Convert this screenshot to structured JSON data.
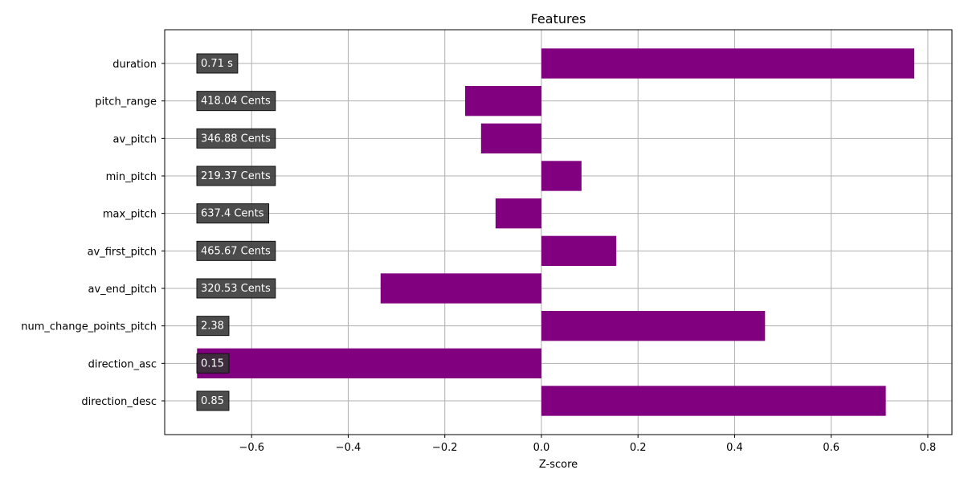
{
  "chart_data": {
    "type": "bar",
    "orientation": "horizontal",
    "title": "Features",
    "xlabel": "Z-score",
    "ylabel": "",
    "xlim": [
      -0.78,
      0.85
    ],
    "xticks": [
      -0.6,
      -0.4,
      -0.2,
      0.0,
      0.2,
      0.4,
      0.6,
      0.8
    ],
    "xtick_labels": [
      "−0.6",
      "−0.4",
      "−0.2",
      "0.0",
      "0.2",
      "0.4",
      "0.6",
      "0.8"
    ],
    "grid": true,
    "bar_color": "#800080",
    "annotation_box_color": "#333333",
    "categories": [
      "duration",
      "pitch_range",
      "av_pitch",
      "min_pitch",
      "max_pitch",
      "av_first_pitch",
      "av_end_pitch",
      "num_change_points_pitch",
      "direction_asc",
      "direction_desc"
    ],
    "values": [
      0.772,
      -0.158,
      -0.125,
      0.083,
      -0.095,
      0.155,
      -0.333,
      0.463,
      -0.713,
      0.713
    ],
    "annotations": [
      "0.71 s",
      "418.04 Cents",
      "346.88 Cents",
      "219.37 Cents",
      "637.4 Cents",
      "465.67 Cents",
      "320.53 Cents",
      "2.38",
      "0.15",
      "0.85"
    ]
  }
}
